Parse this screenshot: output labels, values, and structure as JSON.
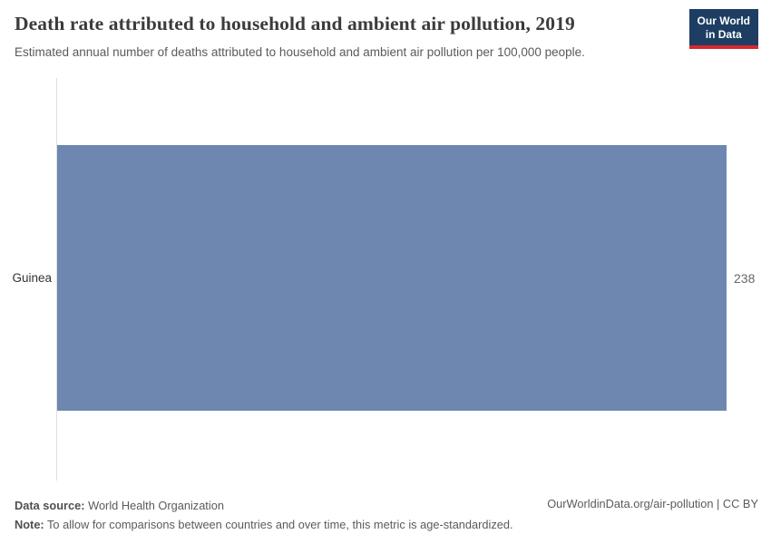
{
  "header": {
    "title": "Death rate attributed to household and ambient air pollution, 2019",
    "subtitle": "Estimated annual number of deaths attributed to household and ambient air pollution per 100,000 people.",
    "logo": {
      "line1": "Our World",
      "line2": "in Data"
    }
  },
  "chart_data": {
    "type": "bar",
    "orientation": "horizontal",
    "title": "Death rate attributed to household and ambient air pollution, 2019",
    "subtitle": "Estimated annual number of deaths attributed to household and ambient air pollution per 100,000 people.",
    "categories": [
      "Guinea"
    ],
    "values": [
      238
    ],
    "value_labels": [
      "238"
    ],
    "xlabel": "",
    "ylabel": "",
    "xlim": [
      0,
      238
    ],
    "xmax": 238,
    "grid": false,
    "legend": false,
    "bar_color": "#6e87b0"
  },
  "footer": {
    "datasource_label": "Data source:",
    "datasource_value": "World Health Organization",
    "note_label": "Note:",
    "note_value": "To allow for comparisons between countries and over time, this metric is age-standardized.",
    "link": "OurWorldinData.org/air-pollution | CC BY"
  },
  "colors": {
    "bar": "#6e87b0",
    "logo_background": "#1d3d63",
    "logo_accent": "#d7282f",
    "axis_line": "#dedede"
  }
}
